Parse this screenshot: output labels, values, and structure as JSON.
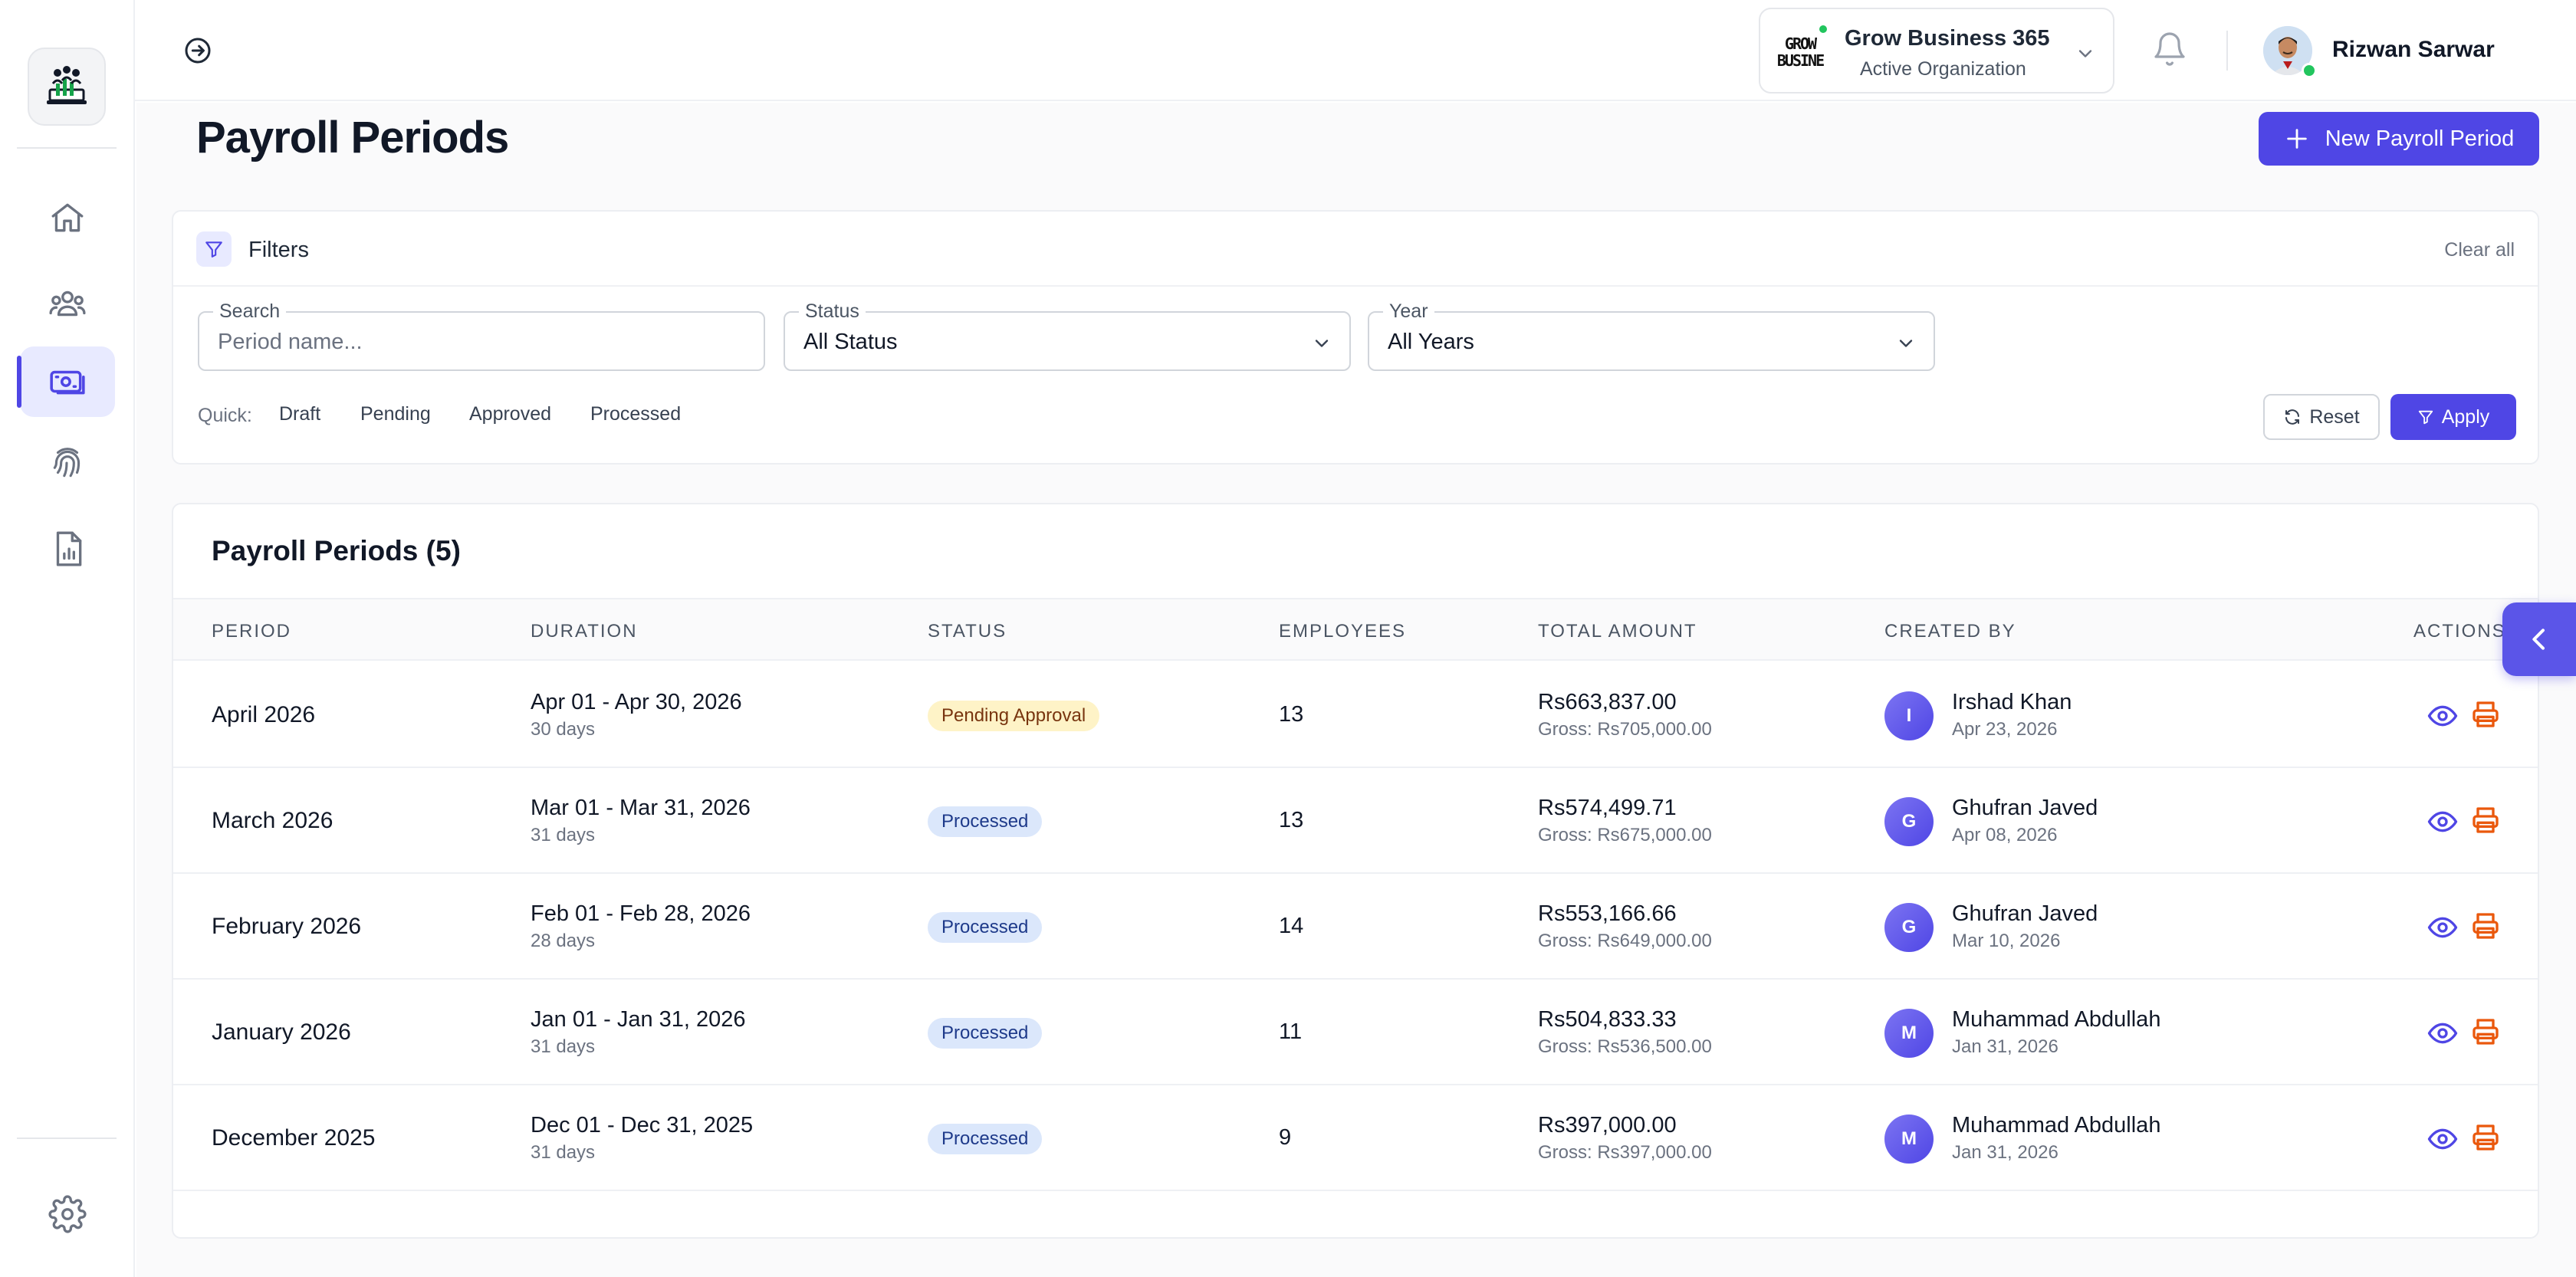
{
  "sidebar": {
    "logo_icon": "app-logo-icon",
    "items": [
      {
        "name": "home",
        "icon": "home-icon",
        "active": false
      },
      {
        "name": "employees",
        "icon": "users-icon",
        "active": false
      },
      {
        "name": "payroll",
        "icon": "money-icon",
        "active": true
      },
      {
        "name": "attendance",
        "icon": "fingerprint-icon",
        "active": false
      },
      {
        "name": "reports",
        "icon": "report-icon",
        "active": false
      }
    ],
    "settings_icon": "gear-icon"
  },
  "topbar": {
    "org": {
      "logo_text_line1": "GROW",
      "logo_text_line2": "BUSINE",
      "name": "Grow Business 365",
      "subtitle": "Active Organization"
    },
    "user": {
      "name": "Rizwan Sarwar"
    }
  },
  "page": {
    "title": "Payroll Periods",
    "new_button": "New Payroll Period"
  },
  "filters": {
    "title": "Filters",
    "clear_all": "Clear all",
    "search": {
      "label": "Search",
      "placeholder": "Period name..."
    },
    "status": {
      "label": "Status",
      "value": "All Status"
    },
    "year": {
      "label": "Year",
      "value": "All Years"
    },
    "quick_label": "Quick:",
    "quick": [
      "Draft",
      "Pending",
      "Approved",
      "Processed"
    ],
    "reset": "Reset",
    "apply": "Apply"
  },
  "table": {
    "title": "Payroll Periods (5)",
    "columns": [
      "PERIOD",
      "DURATION",
      "STATUS",
      "EMPLOYEES",
      "TOTAL AMOUNT",
      "CREATED BY",
      "ACTIONS"
    ],
    "rows": [
      {
        "period": "April 2026",
        "duration": "Apr 01 - Apr 30, 2026",
        "days": "30 days",
        "status": "Pending Approval",
        "status_type": "pending",
        "employees": "13",
        "total": "Rs663,837.00",
        "gross": "Gross: Rs705,000.00",
        "initial": "I",
        "created_by": "Irshad Khan",
        "created_date": "Apr 23, 2026"
      },
      {
        "period": "March 2026",
        "duration": "Mar 01 - Mar 31, 2026",
        "days": "31 days",
        "status": "Processed",
        "status_type": "processed",
        "employees": "13",
        "total": "Rs574,499.71",
        "gross": "Gross: Rs675,000.00",
        "initial": "G",
        "created_by": "Ghufran Javed",
        "created_date": "Apr 08, 2026"
      },
      {
        "period": "February 2026",
        "duration": "Feb 01 - Feb 28, 2026",
        "days": "28 days",
        "status": "Processed",
        "status_type": "processed",
        "employees": "14",
        "total": "Rs553,166.66",
        "gross": "Gross: Rs649,000.00",
        "initial": "G",
        "created_by": "Ghufran Javed",
        "created_date": "Mar 10, 2026"
      },
      {
        "period": "January 2026",
        "duration": "Jan 01 - Jan 31, 2026",
        "days": "31 days",
        "status": "Processed",
        "status_type": "processed",
        "employees": "11",
        "total": "Rs504,833.33",
        "gross": "Gross: Rs536,500.00",
        "initial": "M",
        "created_by": "Muhammad Abdullah",
        "created_date": "Jan 31, 2026"
      },
      {
        "period": "December 2025",
        "duration": "Dec 01 - Dec 31, 2025",
        "days": "31 days",
        "status": "Processed",
        "status_type": "processed",
        "employees": "9",
        "total": "Rs397,000.00",
        "gross": "Gross: Rs397,000.00",
        "initial": "M",
        "created_by": "Muhammad Abdullah",
        "created_date": "Jan 31, 2026"
      }
    ]
  },
  "colors": {
    "primary": "#4f46e5",
    "pending_bg": "#fef3c7",
    "processed_bg": "#dbe7fb",
    "view_icon": "#4f46e5",
    "print_icon": "#ea580c"
  }
}
